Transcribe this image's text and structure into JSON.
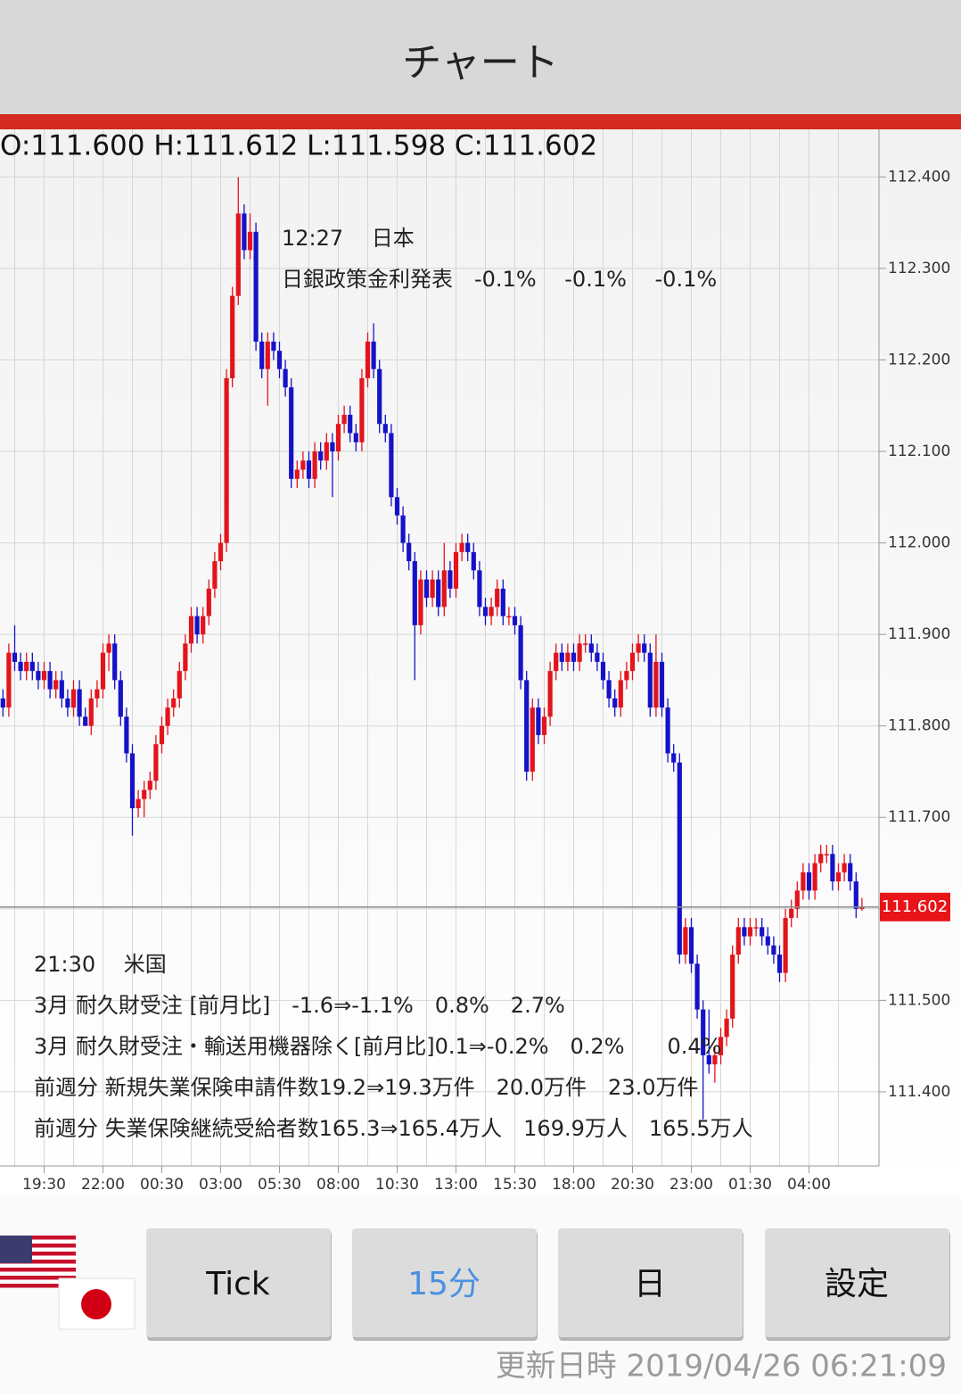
{
  "header": {
    "title": "チャート"
  },
  "chart_data": {
    "type": "candlestick",
    "ohlc_label": "O:111.600 H:111.612 L:111.598 C:111.602",
    "up_color": "#e3141c",
    "down_color": "#1512c8",
    "grid": true,
    "ylim": [
      111.319,
      112.452
    ],
    "yticks": [
      {
        "value": 111.4,
        "label": "111.400"
      },
      {
        "value": 111.5,
        "label": "111.500"
      },
      {
        "value": 111.6,
        "label": "111.600"
      },
      {
        "value": 111.7,
        "label": "111.700"
      },
      {
        "value": 111.8,
        "label": "111.800"
      },
      {
        "value": 111.9,
        "label": "111.900"
      },
      {
        "value": 112.0,
        "label": "112.000"
      },
      {
        "value": 112.1,
        "label": "112.100"
      },
      {
        "value": 112.2,
        "label": "112.200"
      },
      {
        "value": 112.3,
        "label": "112.300"
      },
      {
        "value": 112.4,
        "label": "112.400"
      }
    ],
    "last_price": 111.602,
    "categories": [
      null,
      null,
      null,
      null,
      null,
      null,
      null,
      "19:30",
      null,
      null,
      null,
      null,
      null,
      null,
      null,
      null,
      null,
      "22:00",
      null,
      null,
      null,
      null,
      null,
      null,
      null,
      null,
      null,
      "00:30",
      null,
      null,
      null,
      null,
      null,
      null,
      null,
      null,
      null,
      "03:00",
      null,
      null,
      null,
      null,
      null,
      null,
      null,
      null,
      null,
      "05:30",
      null,
      null,
      null,
      null,
      null,
      null,
      null,
      null,
      null,
      "08:00",
      null,
      null,
      null,
      null,
      null,
      null,
      null,
      null,
      null,
      "10:30",
      null,
      null,
      null,
      null,
      null,
      null,
      null,
      null,
      null,
      "13:00",
      null,
      null,
      null,
      null,
      null,
      null,
      null,
      null,
      null,
      "15:30",
      null,
      null,
      null,
      null,
      null,
      null,
      null,
      null,
      null,
      "18:00",
      null,
      null,
      null,
      null,
      null,
      null,
      null,
      null,
      null,
      "20:30",
      null,
      null,
      null,
      null,
      null,
      null,
      null,
      null,
      null,
      "23:00",
      null,
      null,
      null,
      null,
      null,
      null,
      null,
      null,
      null,
      "01:30",
      null,
      null,
      null,
      null,
      null,
      null,
      null,
      null,
      null,
      "04:00",
      null,
      null,
      null,
      null,
      null,
      null,
      null,
      null,
      null
    ],
    "candles": [
      [
        111.83,
        111.84,
        111.81,
        111.82
      ],
      [
        111.82,
        111.89,
        111.81,
        111.88
      ],
      [
        111.88,
        111.91,
        111.86,
        111.87
      ],
      [
        111.87,
        111.88,
        111.85,
        111.86
      ],
      [
        111.86,
        111.88,
        111.85,
        111.87
      ],
      [
        111.87,
        111.88,
        111.85,
        111.86
      ],
      [
        111.86,
        111.87,
        111.84,
        111.85
      ],
      [
        111.85,
        111.87,
        111.84,
        111.86
      ],
      [
        111.86,
        111.87,
        111.83,
        111.84
      ],
      [
        111.84,
        111.86,
        111.83,
        111.85
      ],
      [
        111.85,
        111.86,
        111.82,
        111.83
      ],
      [
        111.83,
        111.84,
        111.81,
        111.82
      ],
      [
        111.82,
        111.85,
        111.81,
        111.84
      ],
      [
        111.84,
        111.85,
        111.8,
        111.81
      ],
      [
        111.81,
        111.82,
        111.8,
        111.8
      ],
      [
        111.8,
        111.84,
        111.79,
        111.83
      ],
      [
        111.83,
        111.85,
        111.82,
        111.84
      ],
      [
        111.84,
        111.89,
        111.83,
        111.88
      ],
      [
        111.88,
        111.9,
        111.86,
        111.89
      ],
      [
        111.89,
        111.9,
        111.84,
        111.85
      ],
      [
        111.85,
        111.86,
        111.8,
        111.81
      ],
      [
        111.81,
        111.82,
        111.76,
        111.77
      ],
      [
        111.77,
        111.78,
        111.68,
        111.71
      ],
      [
        111.71,
        111.73,
        111.7,
        111.72
      ],
      [
        111.72,
        111.74,
        111.7,
        111.73
      ],
      [
        111.73,
        111.75,
        111.72,
        111.74
      ],
      [
        111.74,
        111.79,
        111.73,
        111.78
      ],
      [
        111.78,
        111.81,
        111.77,
        111.8
      ],
      [
        111.8,
        111.83,
        111.79,
        111.82
      ],
      [
        111.82,
        111.84,
        111.81,
        111.83
      ],
      [
        111.83,
        111.87,
        111.82,
        111.86
      ],
      [
        111.86,
        111.9,
        111.85,
        111.89
      ],
      [
        111.89,
        111.93,
        111.88,
        111.92
      ],
      [
        111.92,
        111.93,
        111.89,
        111.9
      ],
      [
        111.9,
        111.93,
        111.89,
        111.92
      ],
      [
        111.92,
        111.96,
        111.91,
        111.95
      ],
      [
        111.95,
        111.99,
        111.94,
        111.98
      ],
      [
        111.98,
        112.01,
        111.97,
        112.0
      ],
      [
        112.0,
        112.19,
        111.99,
        112.18
      ],
      [
        112.18,
        112.28,
        112.17,
        112.27
      ],
      [
        112.27,
        112.4,
        112.26,
        112.36
      ],
      [
        112.36,
        112.37,
        112.31,
        112.32
      ],
      [
        112.32,
        112.36,
        112.31,
        112.34
      ],
      [
        112.34,
        112.35,
        112.21,
        112.22
      ],
      [
        112.22,
        112.23,
        112.18,
        112.19
      ],
      [
        112.19,
        112.23,
        112.15,
        112.22
      ],
      [
        112.22,
        112.23,
        112.2,
        112.21
      ],
      [
        112.21,
        112.22,
        112.18,
        112.19
      ],
      [
        112.19,
        112.2,
        112.16,
        112.17
      ],
      [
        112.17,
        112.18,
        112.06,
        112.07
      ],
      [
        112.07,
        112.09,
        112.06,
        112.08
      ],
      [
        112.08,
        112.1,
        112.07,
        112.09
      ],
      [
        112.09,
        112.1,
        112.06,
        112.07
      ],
      [
        112.07,
        112.11,
        112.06,
        112.1
      ],
      [
        112.1,
        112.11,
        112.08,
        112.09
      ],
      [
        112.09,
        112.12,
        112.08,
        112.11
      ],
      [
        112.11,
        112.12,
        112.05,
        112.1
      ],
      [
        112.1,
        112.14,
        112.09,
        112.13
      ],
      [
        112.13,
        112.15,
        112.12,
        112.14
      ],
      [
        112.14,
        112.15,
        112.11,
        112.12
      ],
      [
        112.12,
        112.13,
        112.1,
        112.11
      ],
      [
        112.11,
        112.19,
        112.1,
        112.18
      ],
      [
        112.18,
        112.23,
        112.17,
        112.22
      ],
      [
        112.22,
        112.24,
        112.18,
        112.19
      ],
      [
        112.19,
        112.2,
        112.12,
        112.13
      ],
      [
        112.13,
        112.14,
        112.11,
        112.12
      ],
      [
        112.12,
        112.13,
        112.04,
        112.05
      ],
      [
        112.05,
        112.06,
        112.02,
        112.03
      ],
      [
        112.03,
        112.04,
        111.99,
        112.0
      ],
      [
        112.0,
        112.01,
        111.97,
        111.98
      ],
      [
        111.98,
        111.99,
        111.85,
        111.91
      ],
      [
        111.91,
        111.97,
        111.9,
        111.96
      ],
      [
        111.96,
        111.97,
        111.93,
        111.94
      ],
      [
        111.94,
        111.97,
        111.93,
        111.96
      ],
      [
        111.96,
        111.97,
        111.92,
        111.93
      ],
      [
        111.93,
        112.0,
        111.92,
        111.97
      ],
      [
        111.97,
        111.98,
        111.94,
        111.95
      ],
      [
        111.95,
        112.0,
        111.94,
        111.99
      ],
      [
        111.99,
        112.01,
        111.98,
        112.0
      ],
      [
        112.0,
        112.01,
        111.98,
        111.99
      ],
      [
        111.99,
        112.0,
        111.96,
        111.97
      ],
      [
        111.97,
        111.98,
        111.92,
        111.93
      ],
      [
        111.93,
        111.94,
        111.91,
        111.92
      ],
      [
        111.92,
        111.94,
        111.91,
        111.93
      ],
      [
        111.93,
        111.96,
        111.92,
        111.95
      ],
      [
        111.95,
        111.96,
        111.91,
        111.92
      ],
      [
        111.92,
        111.93,
        111.91,
        111.92
      ],
      [
        111.92,
        111.93,
        111.9,
        111.91
      ],
      [
        111.91,
        111.92,
        111.84,
        111.85
      ],
      [
        111.85,
        111.86,
        111.74,
        111.75
      ],
      [
        111.75,
        111.83,
        111.74,
        111.82
      ],
      [
        111.82,
        111.83,
        111.78,
        111.79
      ],
      [
        111.79,
        111.82,
        111.78,
        111.81
      ],
      [
        111.81,
        111.87,
        111.8,
        111.86
      ],
      [
        111.86,
        111.89,
        111.85,
        111.88
      ],
      [
        111.88,
        111.89,
        111.86,
        111.87
      ],
      [
        111.87,
        111.89,
        111.86,
        111.88
      ],
      [
        111.88,
        111.89,
        111.86,
        111.87
      ],
      [
        111.87,
        111.9,
        111.86,
        111.89
      ],
      [
        111.89,
        111.9,
        111.88,
        111.89
      ],
      [
        111.89,
        111.9,
        111.87,
        111.88
      ],
      [
        111.88,
        111.89,
        111.86,
        111.87
      ],
      [
        111.87,
        111.88,
        111.84,
        111.85
      ],
      [
        111.85,
        111.86,
        111.82,
        111.83
      ],
      [
        111.83,
        111.84,
        111.81,
        111.82
      ],
      [
        111.82,
        111.86,
        111.81,
        111.85
      ],
      [
        111.85,
        111.87,
        111.84,
        111.86
      ],
      [
        111.86,
        111.89,
        111.85,
        111.88
      ],
      [
        111.88,
        111.9,
        111.87,
        111.89
      ],
      [
        111.89,
        111.9,
        111.87,
        111.88
      ],
      [
        111.88,
        111.89,
        111.81,
        111.82
      ],
      [
        111.82,
        111.9,
        111.81,
        111.87
      ],
      [
        111.87,
        111.88,
        111.81,
        111.82
      ],
      [
        111.82,
        111.83,
        111.76,
        111.77
      ],
      [
        111.77,
        111.78,
        111.75,
        111.76
      ],
      [
        111.76,
        111.77,
        111.54,
        111.55
      ],
      [
        111.55,
        111.59,
        111.54,
        111.58
      ],
      [
        111.58,
        111.59,
        111.53,
        111.54
      ],
      [
        111.54,
        111.55,
        111.48,
        111.49
      ],
      [
        111.49,
        111.5,
        111.37,
        111.44
      ],
      [
        111.44,
        111.49,
        111.42,
        111.43
      ],
      [
        111.43,
        111.45,
        111.41,
        111.44
      ],
      [
        111.44,
        111.47,
        111.43,
        111.46
      ],
      [
        111.46,
        111.49,
        111.45,
        111.48
      ],
      [
        111.48,
        111.56,
        111.47,
        111.55
      ],
      [
        111.55,
        111.59,
        111.54,
        111.58
      ],
      [
        111.58,
        111.59,
        111.56,
        111.57
      ],
      [
        111.57,
        111.59,
        111.56,
        111.58
      ],
      [
        111.58,
        111.59,
        111.57,
        111.58
      ],
      [
        111.58,
        111.59,
        111.56,
        111.57
      ],
      [
        111.57,
        111.58,
        111.55,
        111.56
      ],
      [
        111.56,
        111.57,
        111.54,
        111.55
      ],
      [
        111.55,
        111.56,
        111.52,
        111.53
      ],
      [
        111.53,
        111.6,
        111.52,
        111.59
      ],
      [
        111.59,
        111.61,
        111.58,
        111.6
      ],
      [
        111.6,
        111.63,
        111.59,
        111.62
      ],
      [
        111.62,
        111.65,
        111.61,
        111.64
      ],
      [
        111.64,
        111.65,
        111.61,
        111.62
      ],
      [
        111.62,
        111.66,
        111.61,
        111.65
      ],
      [
        111.65,
        111.67,
        111.64,
        111.66
      ],
      [
        111.66,
        111.67,
        111.65,
        111.66
      ],
      [
        111.66,
        111.67,
        111.62,
        111.63
      ],
      [
        111.63,
        111.65,
        111.62,
        111.64
      ],
      [
        111.64,
        111.66,
        111.63,
        111.65
      ],
      [
        111.65,
        111.66,
        111.62,
        111.63
      ],
      [
        111.63,
        111.64,
        111.59,
        111.6
      ],
      [
        111.6,
        111.612,
        111.598,
        111.602
      ]
    ],
    "annotations": [
      {
        "lines": [
          "12:27　 日本",
          "日銀政策金利発表　-0.1%　 -0.1%　 -0.1%"
        ]
      },
      {
        "lines": [
          "21:30　 米国",
          "3月 耐久財受注 [前月比]　-1.6⇒-1.1%　0.8%　2.7%",
          "3月 耐久財受注・輸送用機器除く[前月比]0.1⇒-0.2%　0.2%　　0.4%",
          "前週分 新規失業保険申請件数19.2⇒19.3万件　20.0万件　23.0万件",
          "前週分 失業保険継続受給者数165.3⇒165.4万人　169.9万人　165.5万人"
        ]
      }
    ]
  },
  "buttons": [
    "Tick",
    "15分",
    "日",
    "設定"
  ],
  "updated": "更新日時 2019/04/26 06:21:09"
}
